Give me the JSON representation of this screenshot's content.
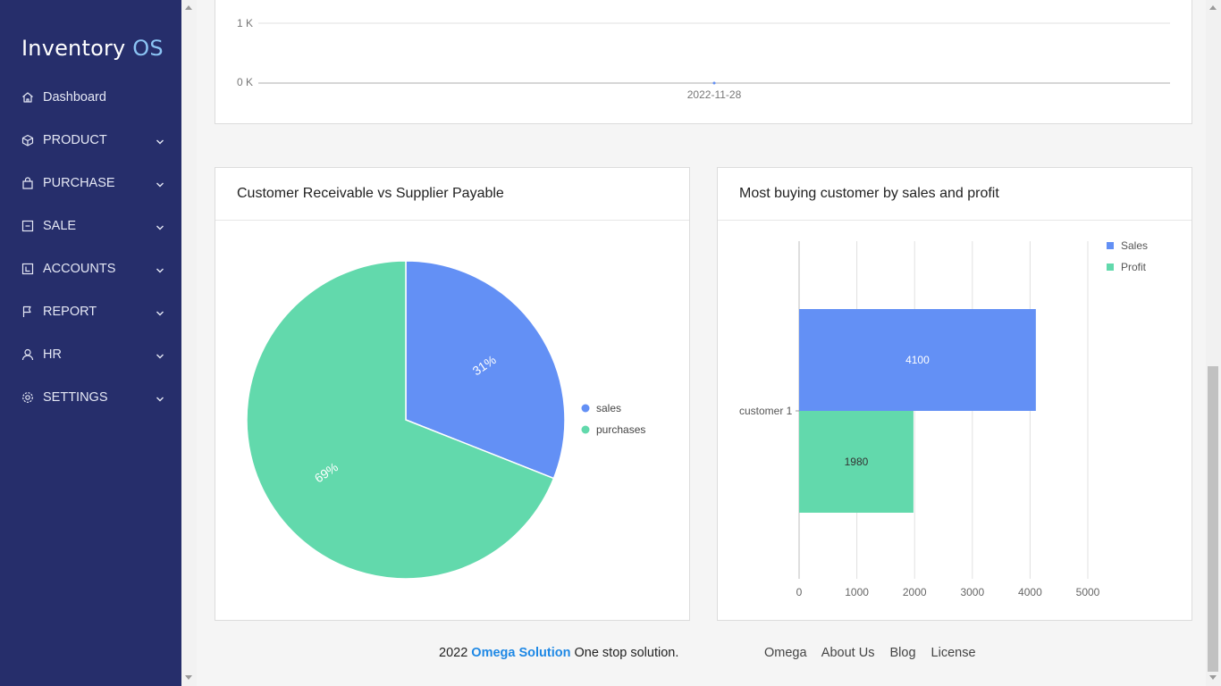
{
  "app": {
    "name_main": "Inventory",
    "name_accent": "OS"
  },
  "sidebar": {
    "items": [
      {
        "label": "Dashboard",
        "icon": "home-icon",
        "expandable": false
      },
      {
        "label": "PRODUCT",
        "icon": "box-icon",
        "expandable": true
      },
      {
        "label": "PURCHASE",
        "icon": "bag-icon",
        "expandable": true
      },
      {
        "label": "SALE",
        "icon": "receipt-icon",
        "expandable": true
      },
      {
        "label": "ACCOUNTS",
        "icon": "wallet-icon",
        "expandable": true
      },
      {
        "label": "REPORT",
        "icon": "flag-icon",
        "expandable": true
      },
      {
        "label": "HR",
        "icon": "user-icon",
        "expandable": true
      },
      {
        "label": "SETTINGS",
        "icon": "gear-icon",
        "expandable": true
      }
    ]
  },
  "top_chart": {
    "y_ticks": [
      "1 K",
      "0 K"
    ],
    "x_label": "2022-11-28"
  },
  "pie_card": {
    "title": "Customer Receivable vs Supplier Payable"
  },
  "bar_card": {
    "title": "Most buying customer by sales and profit"
  },
  "colors": {
    "sidebar_bg": "#262e6b",
    "blue": "#6390f5",
    "green": "#62d9ac",
    "link": "#1e88e5"
  },
  "chart_data": [
    {
      "type": "line",
      "x": [
        "2022-11-28"
      ],
      "y_ticks": [
        "0 K",
        "1 K"
      ],
      "series": [
        {
          "values": [
            0
          ]
        }
      ]
    },
    {
      "type": "pie",
      "labels": [
        "sales",
        "purchases"
      ],
      "values": [
        31,
        69
      ],
      "value_labels": [
        "31%",
        "69%"
      ],
      "colors": [
        "#6390f5",
        "#62d9ac"
      ],
      "title": "Customer Receivable vs Supplier Payable",
      "legend": "right"
    },
    {
      "type": "bar",
      "orientation": "horizontal",
      "categories": [
        "customer 1"
      ],
      "series": [
        {
          "name": "Sales",
          "values": [
            4100
          ],
          "color": "#6390f5"
        },
        {
          "name": "Profit",
          "values": [
            1980
          ],
          "color": "#62d9ac"
        }
      ],
      "x_ticks": [
        "0",
        "1000",
        "2000",
        "3000",
        "4000",
        "5000"
      ],
      "xlim": [
        0,
        5000
      ],
      "title": "Most buying customer by sales and profit",
      "legend": "top-right",
      "grid": true
    }
  ],
  "footer": {
    "year": "2022",
    "brand": "Omega Solution",
    "tagline": "One stop solution.",
    "links": [
      "Omega",
      "About Us",
      "Blog",
      "License"
    ]
  }
}
